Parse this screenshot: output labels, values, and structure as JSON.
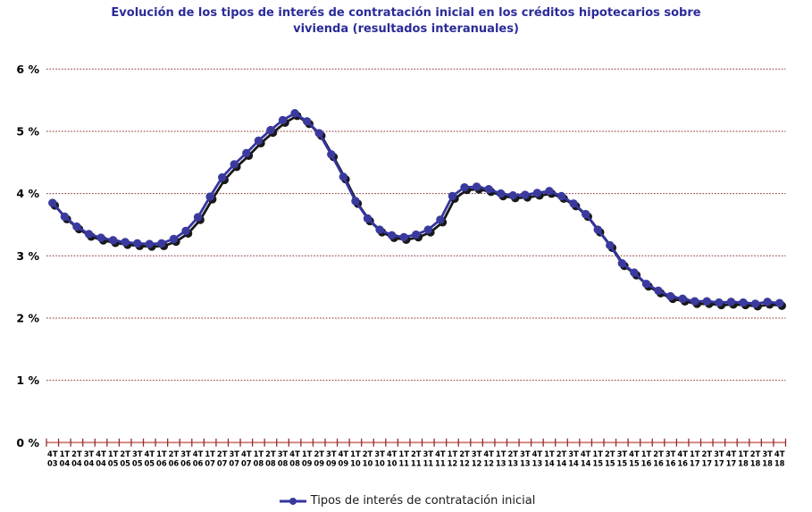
{
  "chart_data": {
    "type": "line",
    "title": "Evolución de los tipos de interés de contratación inicial en los créditos hipotecarios sobre vivienda (resultados interanuales)",
    "xlabel": "",
    "ylabel": "",
    "ylim": [
      0,
      6
    ],
    "grid": "horizontal-dotted",
    "legend_position": "bottom",
    "ytick_labels": [
      "0 %",
      "1 %",
      "2 %",
      "3 %",
      "4 %",
      "5 %",
      "6 %"
    ],
    "categories": [
      "4T03",
      "1T04",
      "2T04",
      "3T04",
      "4T04",
      "1T05",
      "2T05",
      "3T05",
      "4T05",
      "1T06",
      "2T06",
      "3T06",
      "4T06",
      "1T07",
      "2T07",
      "3T07",
      "4T07",
      "1T08",
      "2T08",
      "3T08",
      "4T08",
      "1T09",
      "2T09",
      "3T09",
      "4T09",
      "1T10",
      "2T10",
      "3T10",
      "4T10",
      "1T11",
      "2T11",
      "3T11",
      "4T11",
      "1T12",
      "2T12",
      "3T12",
      "4T12",
      "1T13",
      "2T13",
      "3T13",
      "4T13",
      "1T14",
      "2T14",
      "3T14",
      "4T14",
      "1T15",
      "2T15",
      "3T15",
      "4T15",
      "1T16",
      "2T16",
      "3T16",
      "4T16",
      "1T17",
      "2T17",
      "3T17",
      "4T17",
      "1T18",
      "2T18",
      "3T18",
      "4T18"
    ],
    "series": [
      {
        "name": "Tipos de interés de contratación inicial",
        "values": [
          3.85,
          3.63,
          3.47,
          3.35,
          3.29,
          3.25,
          3.22,
          3.2,
          3.19,
          3.2,
          3.27,
          3.4,
          3.62,
          3.95,
          4.26,
          4.47,
          4.65,
          4.85,
          5.02,
          5.18,
          5.29,
          5.16,
          4.97,
          4.63,
          4.27,
          3.88,
          3.6,
          3.42,
          3.33,
          3.3,
          3.34,
          3.42,
          3.58,
          3.96,
          4.1,
          4.11,
          4.07,
          4.0,
          3.97,
          3.98,
          4.01,
          4.04,
          3.96,
          3.84,
          3.67,
          3.42,
          3.17,
          2.88,
          2.73,
          2.55,
          2.44,
          2.35,
          2.31,
          2.27,
          2.27,
          2.25,
          2.26,
          2.25,
          2.23,
          2.26,
          2.24
        ]
      }
    ],
    "colors": {
      "title": "#2b2b99",
      "line": "#3434a2",
      "marker": "#3a3a9e",
      "shadow": "#0d0d0d",
      "grid": "#8f3535",
      "axis": "#d08585",
      "tick": "#8b2f2f",
      "text": "#000000"
    }
  }
}
